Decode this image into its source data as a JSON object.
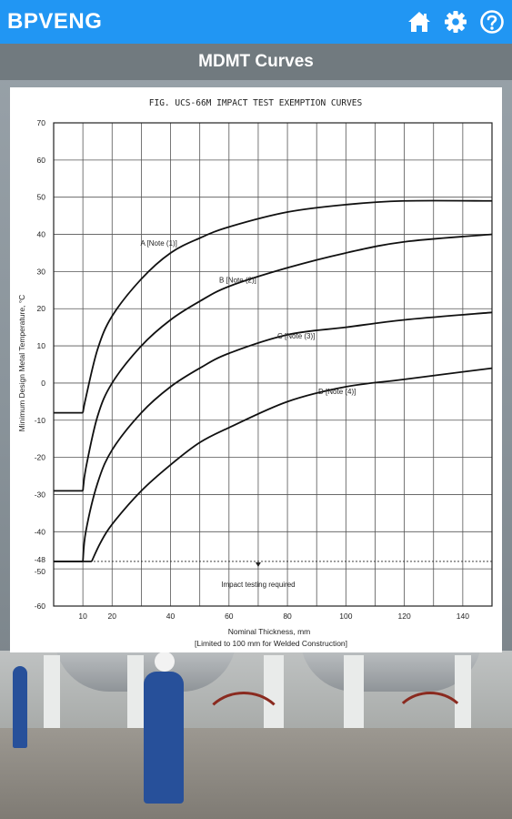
{
  "app": {
    "title": "BPVENG",
    "icons": [
      "home-icon",
      "gear-icon",
      "help-icon"
    ]
  },
  "header": {
    "title": "MDMT Curves"
  },
  "colors": {
    "appbar": "#2196f3",
    "subbar": "#6e767c"
  },
  "chart_data": {
    "type": "line",
    "title": "FIG. UCS-66M   IMPACT TEST EXEMPTION CURVES",
    "xlabel": "Nominal Thickness, mm",
    "xlabel_note": "[Limited to 100 mm for Welded Construction]",
    "ylabel": "Minimum Design Metal Temperature, °C",
    "xlim": [
      0,
      150
    ],
    "ylim": [
      -60,
      70
    ],
    "grid": true,
    "x_ticks": [
      "10",
      "20",
      "40",
      "60",
      "80",
      "100",
      "120",
      "140"
    ],
    "x_tick_values": [
      10,
      20,
      40,
      60,
      80,
      100,
      120,
      140
    ],
    "y_ticks": [
      "70",
      "60",
      "50",
      "40",
      "30",
      "20",
      "10",
      "0",
      "-10",
      "-20",
      "-30",
      "-40",
      "-48",
      "-50",
      "-60"
    ],
    "y_tick_values": [
      70,
      60,
      50,
      40,
      30,
      20,
      10,
      0,
      -10,
      -20,
      -30,
      -40,
      -48,
      -50,
      -60
    ],
    "reference_line": {
      "y": -48,
      "style": "dashed",
      "label": "Impact testing required",
      "label_x": 70
    },
    "series": [
      {
        "name": "A [Note (1)]",
        "label_x": 36,
        "label_y": 37,
        "x": [
          0,
          10,
          11,
          15,
          20,
          30,
          40,
          50,
          60,
          80,
          100,
          120,
          150
        ],
        "y": [
          -8,
          -8,
          -4,
          9,
          18,
          28,
          35,
          39,
          42,
          46,
          48,
          49,
          49
        ]
      },
      {
        "name": "B [Note (2)]",
        "label_x": 63,
        "label_y": 27,
        "x": [
          0,
          10,
          11,
          15,
          20,
          30,
          40,
          50,
          60,
          80,
          100,
          120,
          150
        ],
        "y": [
          -29,
          -29,
          -23,
          -9,
          0,
          10,
          17,
          22,
          26,
          31,
          35,
          38,
          40
        ]
      },
      {
        "name": "C [Note (3)]",
        "label_x": 83,
        "label_y": 12,
        "x": [
          0,
          10,
          11,
          15,
          20,
          30,
          40,
          50,
          60,
          80,
          100,
          120,
          150
        ],
        "y": [
          -48,
          -48,
          -40,
          -27,
          -18,
          -8,
          -1,
          4,
          8,
          13,
          15,
          17,
          19
        ]
      },
      {
        "name": "D [Note (4)]",
        "label_x": 97,
        "label_y": -3,
        "x": [
          0,
          10,
          13,
          16,
          20,
          30,
          40,
          50,
          60,
          80,
          100,
          120,
          150
        ],
        "y": [
          -48,
          -48,
          -48,
          -43,
          -38,
          -29,
          -22,
          -16,
          -12,
          -5,
          -1,
          1,
          4
        ]
      }
    ]
  }
}
